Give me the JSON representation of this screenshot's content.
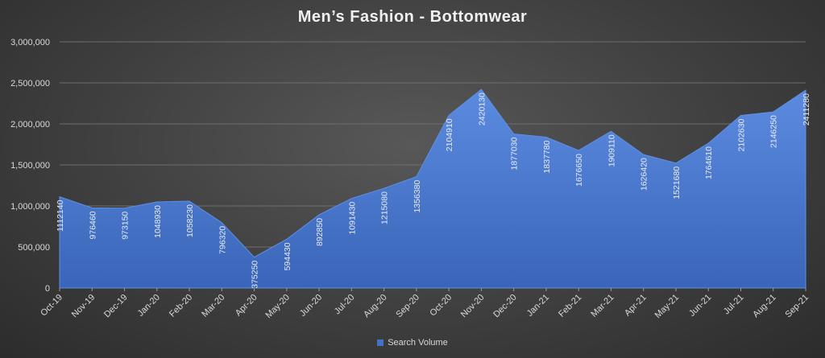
{
  "chart_data": {
    "type": "area",
    "title": "Men’s  Fashion  -  Bottomwear",
    "categories": [
      "Oct-19",
      "Nov-19",
      "Dec-19",
      "Jan-20",
      "Feb-20",
      "Mar-20",
      "Apr-20",
      "May-20",
      "Jun-20",
      "Jul-20",
      "Aug-20",
      "Sep-20",
      "Oct-20",
      "Nov-20",
      "Dec-20",
      "Jan-21",
      "Feb-21",
      "Mar-21",
      "Apr-21",
      "May-21",
      "Jun-21",
      "Jul-21",
      "Aug-21",
      "Sep-21"
    ],
    "series": [
      {
        "name": "Search Volume",
        "color": "#4472c4",
        "values": [
          1112140,
          976460,
          973150,
          1048930,
          1058230,
          796320,
          375250,
          594430,
          892850,
          1091430,
          1215080,
          1356380,
          2104910,
          2420130,
          1877030,
          1837780,
          1676650,
          1909110,
          1626420,
          1521680,
          1764610,
          2102630,
          2146250,
          2411280
        ]
      }
    ],
    "ylim": [
      0,
      3000000
    ],
    "yticks": [
      "0",
      "500,000",
      "1,000,000",
      "1,500,000",
      "2,000,000",
      "2,500,000",
      "3,000,000"
    ],
    "ytick_values": [
      0,
      500000,
      1000000,
      1500000,
      2000000,
      2500000,
      3000000
    ],
    "grid": true,
    "legend": "bottom",
    "xlabel": "",
    "ylabel": ""
  }
}
